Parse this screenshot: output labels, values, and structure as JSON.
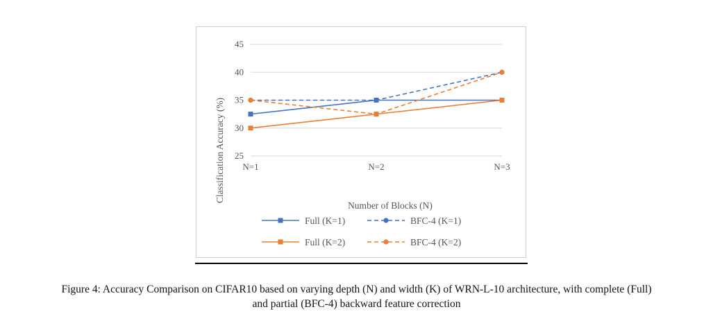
{
  "chart_data": {
    "type": "line",
    "categories": [
      "N=1",
      "N=2",
      "N=3"
    ],
    "xlabel": "Number of Blocks (N)",
    "ylabel": "Classification Accuracy (%)",
    "ylim": [
      25,
      45
    ],
    "yticks": [
      25,
      30,
      35,
      40,
      45
    ],
    "grid": true,
    "legend_position": "bottom",
    "series": [
      {
        "name": "Full (K=1)",
        "values": [
          32.5,
          35,
          35
        ],
        "color": "#4472C4",
        "dash": false,
        "marker": "square"
      },
      {
        "name": "BFC-4 (K=1)",
        "values": [
          35,
          35,
          40
        ],
        "color": "#4472C4",
        "dash": true,
        "marker": "circle"
      },
      {
        "name": "Full (K=2)",
        "values": [
          30,
          32.5,
          35
        ],
        "color": "#ED7D31",
        "dash": false,
        "marker": "square"
      },
      {
        "name": "BFC-4 (K=2)",
        "values": [
          35,
          32.5,
          40
        ],
        "color": "#ED7D31",
        "dash": true,
        "marker": "circle"
      }
    ]
  },
  "caption": {
    "line1": "Figure 4: Accuracy Comparison on CIFAR10 based on varying depth (N) and width (K) of WRN-L-10 architecture, with complete (Full)",
    "line2": "and partial (BFC-4) backward feature correction"
  }
}
